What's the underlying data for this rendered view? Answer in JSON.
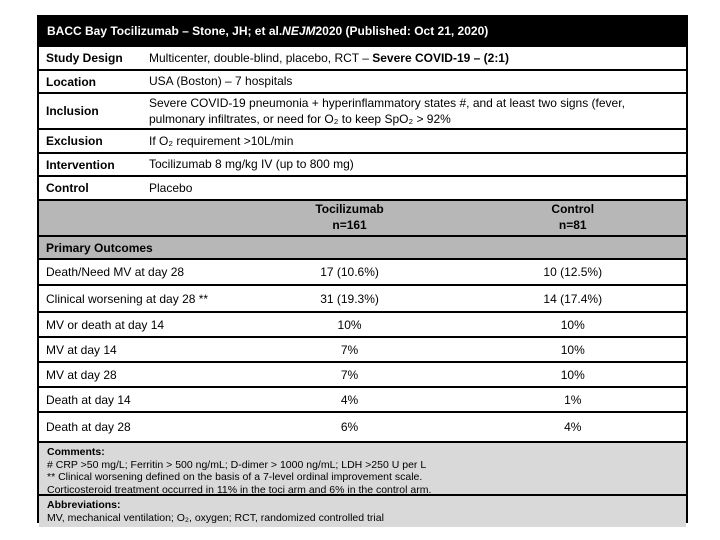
{
  "colors": {
    "title_bar_bg": "#000000",
    "title_bar_text": "#ffffff",
    "section_header_gray": "#b7b7b7",
    "note_gray": "#d9d9d9",
    "border": "#000000"
  },
  "title": {
    "prefix": "BACC Bay Tocilizumab – Stone, JH; et al. ",
    "journal_italic": "NEJM",
    "suffix": " 2020 (Published: Oct 21, 2020)"
  },
  "info_rows": [
    {
      "label": "Study Design",
      "value": "Multicenter, double-blind, placebo, RCT – ",
      "value_bold": "Severe COVID-19 – (2:1)"
    },
    {
      "label": "Location",
      "value": "USA (Boston) – 7 hospitals",
      "value_bold": ""
    },
    {
      "label": "Inclusion",
      "value": "Severe COVID-19 pneumonia + hyperinflammatory states #, and at least two signs (fever, pulmonary infiltrates, or need for O₂ to keep SpO₂ > 92%",
      "value_bold": ""
    },
    {
      "label": "Exclusion",
      "value": "If O₂ requirement >10L/min",
      "value_bold": ""
    },
    {
      "label": "Intervention",
      "value": "Tocilizumab 8 mg/kg IV (up to 800 mg)",
      "value_bold": ""
    },
    {
      "label": "Control",
      "value": "Placebo",
      "value_bold": ""
    }
  ],
  "outcomes_header": {
    "toci_label": "Tocilizumab",
    "toci_n": "n=161",
    "control_label": "Control",
    "control_n": "n=81"
  },
  "primary_outcomes_label": "Primary Outcomes",
  "outcome_rows": [
    {
      "label": "Death/Need MV at day 28",
      "toci": "17 (10.6%)",
      "control": "10 (12.5%)"
    },
    {
      "label": "Clinical worsening at day 28 **",
      "toci": "31 (19.3%)",
      "control": "14 (17.4%)"
    },
    {
      "label": "MV or death at day 14",
      "toci": "10%",
      "control": "10%"
    },
    {
      "label": "MV at day 14",
      "toci": "7%",
      "control": "10%"
    },
    {
      "label": "MV at day 28",
      "toci": "7%",
      "control": "10%"
    },
    {
      "label": "Death at day 14",
      "toci": "4%",
      "control": "1%"
    },
    {
      "label": "Death at day 28",
      "toci": "6%",
      "control": "4%"
    }
  ],
  "comments": {
    "heading": "Comments:",
    "lines": [
      "# CRP >50 mg/L; Ferritin > 500 ng/mL; D-dimer > 1000 ng/mL; LDH >250 U per L",
      "** Clinical worsening defined on the basis of a 7-level ordinal improvement scale.",
      "Corticosteroid treatment occurred in 11% in the toci arm and 6% in the control arm."
    ]
  },
  "abbreviations": {
    "heading": "Abbreviations:",
    "line": "MV, mechanical ventilation; O₂, oxygen; RCT, randomized controlled trial"
  }
}
